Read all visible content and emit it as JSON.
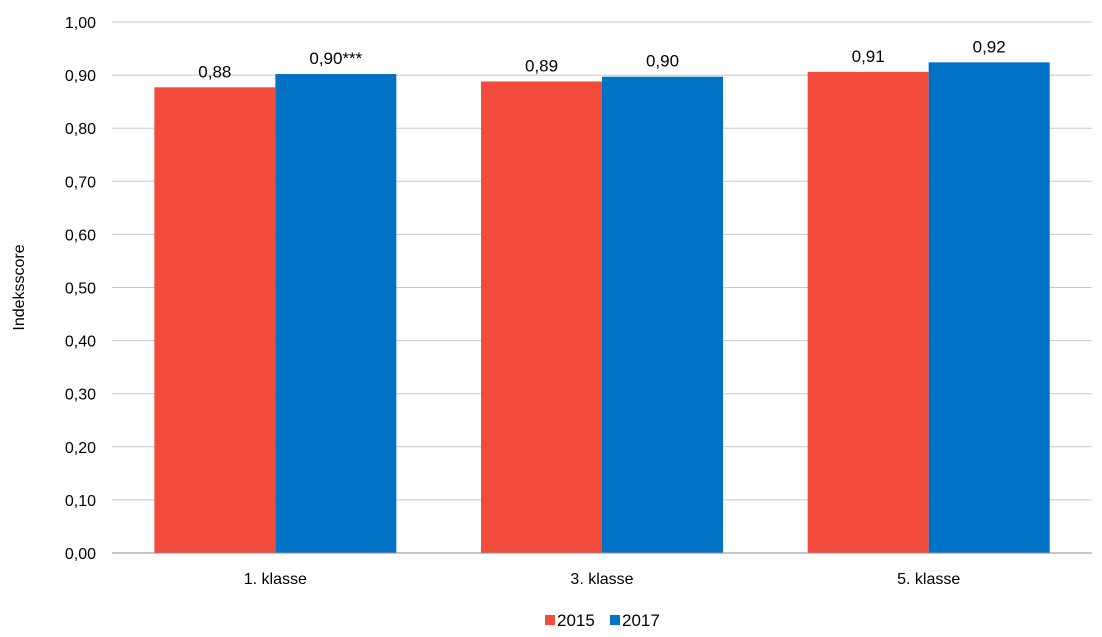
{
  "chart_data": {
    "type": "bar",
    "categories": [
      "1. klasse",
      "3. klasse",
      "5. klasse"
    ],
    "series": [
      {
        "name": "2015",
        "values": [
          0.877,
          0.888,
          0.906
        ],
        "labels": [
          "0,88",
          "0,89",
          "0,91"
        ]
      },
      {
        "name": "2017",
        "values": [
          0.902,
          0.897,
          0.924
        ],
        "labels": [
          "0,90***",
          "0,90",
          "0,92"
        ]
      }
    ],
    "ylabel": "Indeksscore",
    "xlabel": "",
    "ylim": [
      0,
      1.0
    ],
    "yticks": [
      "0,00",
      "0,10",
      "0,20",
      "0,30",
      "0,40",
      "0,50",
      "0,60",
      "0,70",
      "0,80",
      "0,90",
      "1,00"
    ],
    "grid": true,
    "legend_position": "bottom-center"
  },
  "colors": {
    "2015": "#f44c3c",
    "2017": "#0072c6"
  }
}
